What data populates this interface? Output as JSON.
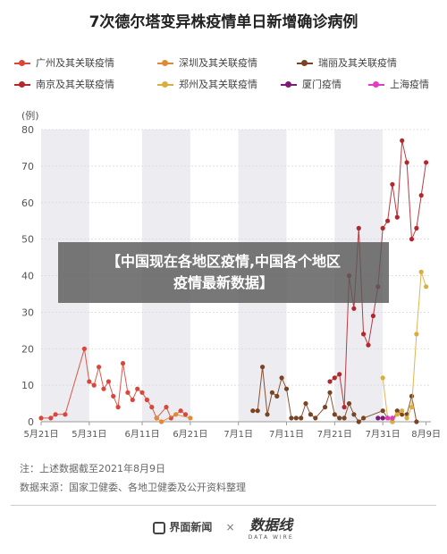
{
  "title": "7次德尔塔变异株疫情单日新增确诊病例",
  "legend": [
    {
      "name": "广州及其关联疫情",
      "color": "#d9473b"
    },
    {
      "name": "深圳及其关联疫情",
      "color": "#e08a35"
    },
    {
      "name": "瑞丽及其关联疫情",
      "color": "#7a4422"
    },
    {
      "name": "南京及其关联疫情",
      "color": "#b1282d"
    },
    {
      "name": "郑州及其关联疫情",
      "color": "#d9ad40"
    },
    {
      "name": "厦门疫情",
      "color": "#7b1b73"
    },
    {
      "name": "上海疫情",
      "color": "#e03cc4"
    }
  ],
  "banner": {
    "line1": "【中国现在各地区疫情,中国各个地区",
    "line2": "疫情最新数据】"
  },
  "notes": {
    "note1": "注：上述数据截至2021年8月9日",
    "note2": "数据来源：国家卫健委、各地卫健委及公开资料整理"
  },
  "footer": {
    "brand1": "界面新闻",
    "times": "×",
    "brand2": "数据线",
    "brand2_sub": "DATA WIRE"
  },
  "chart_data": {
    "type": "line",
    "title": "7次德尔塔变异株疫情单日新增确诊病例",
    "ylabel": "(例)",
    "ylim": [
      0,
      80
    ],
    "y_ticks": [
      0,
      10,
      20,
      30,
      40,
      50,
      60,
      70,
      80
    ],
    "x_domain": [
      "2021-05-21",
      "2021-08-10"
    ],
    "x_ticks": [
      "5月21日",
      "5月31日",
      "6月11日",
      "6月21日",
      "7月1日",
      "7月11日",
      "7月21日",
      "7月31日",
      "8月9日"
    ],
    "grid": "alternating vertical bands",
    "series": [
      {
        "name": "广州及其关联疫情",
        "color": "#d9473b",
        "x": [
          "05-21",
          "05-23",
          "05-24",
          "05-26",
          "05-30",
          "05-31",
          "06-01",
          "06-02",
          "06-03",
          "06-04",
          "06-05",
          "06-06",
          "06-07",
          "06-08",
          "06-09",
          "06-10",
          "06-11",
          "06-12",
          "06-13",
          "06-14",
          "06-16",
          "06-17",
          "06-19",
          "06-20"
        ],
        "values": [
          1,
          1,
          2,
          2,
          20,
          11,
          10,
          15,
          9,
          11,
          7,
          4,
          16,
          8,
          6,
          9,
          8,
          6,
          4,
          1,
          4,
          1,
          3,
          2
        ]
      },
      {
        "name": "深圳及其关联疫情",
        "color": "#e08a35",
        "x": [
          "06-14",
          "06-15",
          "06-18",
          "06-21"
        ],
        "values": [
          1,
          0,
          2,
          1
        ]
      },
      {
        "name": "瑞丽及其关联疫情",
        "color": "#7a4422",
        "x": [
          "07-04",
          "07-05",
          "07-06",
          "07-07",
          "07-08",
          "07-09",
          "07-10",
          "07-11",
          "07-12",
          "07-13",
          "07-14",
          "07-15",
          "07-16",
          "07-17",
          "07-19",
          "07-20",
          "07-21",
          "07-22",
          "07-23",
          "07-24",
          "07-25",
          "07-26",
          "07-27",
          "07-31",
          "08-01",
          "08-02",
          "08-03",
          "08-04",
          "08-05",
          "08-06",
          "08-07"
        ],
        "values": [
          3,
          3,
          15,
          2,
          8,
          7,
          12,
          9,
          1,
          1,
          1,
          5,
          2,
          1,
          4,
          8,
          2,
          1,
          1,
          5,
          2,
          0,
          1,
          3,
          1,
          0,
          3,
          2,
          2,
          7,
          0
        ]
      },
      {
        "name": "南京及其关联疫情",
        "color": "#b1282d",
        "x": [
          "07-20",
          "07-21",
          "07-22",
          "07-23",
          "07-24",
          "07-25",
          "07-26",
          "07-27",
          "07-28",
          "07-29",
          "07-30",
          "07-31",
          "08-01",
          "08-02",
          "08-03",
          "08-04",
          "08-05",
          "08-06",
          "08-07",
          "08-08",
          "08-09"
        ],
        "values": [
          11,
          12,
          13,
          4,
          40,
          31,
          53,
          24,
          21,
          29,
          37,
          53,
          55,
          65,
          56,
          77,
          71,
          50,
          53,
          62,
          71
        ]
      },
      {
        "name": "郑州及其关联疫情",
        "color": "#d9ad40",
        "x": [
          "07-31",
          "08-01",
          "08-02",
          "08-03",
          "08-04",
          "08-05",
          "08-06",
          "08-07",
          "08-08",
          "08-09"
        ],
        "values": [
          12,
          1,
          0,
          2,
          3,
          1,
          4,
          24,
          41,
          37
        ]
      },
      {
        "name": "厦门疫情",
        "color": "#7b1b73",
        "x": [
          "07-30",
          "07-31",
          "08-02"
        ],
        "values": [
          1,
          1,
          1
        ]
      },
      {
        "name": "上海疫情",
        "color": "#e03cc4",
        "x": [
          "08-01",
          "08-02"
        ],
        "values": [
          1,
          1
        ]
      }
    ]
  }
}
